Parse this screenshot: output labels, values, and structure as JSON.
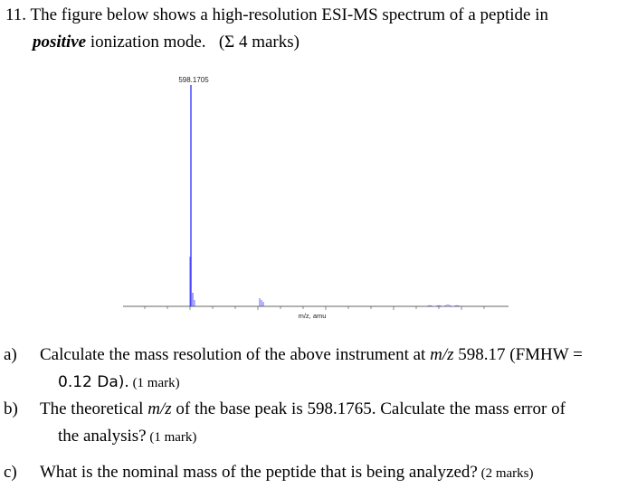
{
  "question": {
    "number": "11.",
    "line1": "The figure below shows a high-resolution ESI-MS spectrum of a peptide in",
    "emph": "positive",
    "line2_rest": " ionization mode.",
    "marks": "(Σ 4 marks)"
  },
  "spectrum": {
    "peak_label": "598.1705",
    "xlabel": "m/z, amu"
  },
  "chart_data": {
    "type": "line",
    "title": "",
    "xlabel": "m/z, amu",
    "ylabel": "",
    "annotations": [
      "598.1705"
    ],
    "series": [
      {
        "values": [
          {
            "x": 598.1705,
            "y": 1.0
          },
          {
            "x": 598.8,
            "y": 0.22
          },
          {
            "x": 604.2,
            "y": 0.03
          }
        ]
      }
    ]
  },
  "parts": [
    {
      "label": "a)",
      "text1": "Calculate the mass resolution of the above instrument at ",
      "mz": "m/z",
      "text1b": " 598.17 (FMHW =",
      "text2": "0.12 Da).",
      "marks": " (1 mark)"
    },
    {
      "label": "b)",
      "text1a": "The theoretical ",
      "mz": "m/z",
      "text1b": " of the base peak is 598.1765.   Calculate the mass error of",
      "text2": "the analysis?",
      "marks": " (1 mark)"
    },
    {
      "label": "c)",
      "text1": "What is the nominal mass of the peptide that is being analyzed?",
      "marks": " (2 marks)"
    }
  ]
}
